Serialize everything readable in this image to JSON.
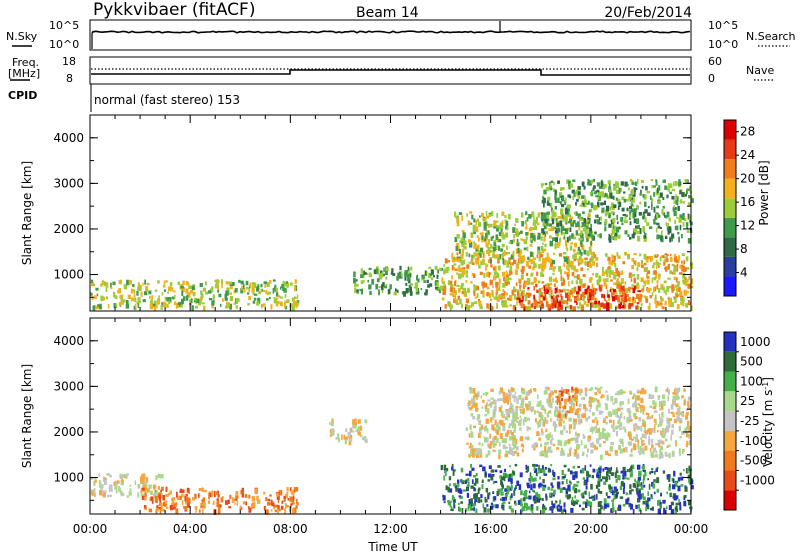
{
  "header": {
    "station": "Pykkvibaer (fitACF)",
    "beam": "Beam 14",
    "date": "20/Feb/2014"
  },
  "nsky_panel": {
    "left_label": "N.Sky",
    "left_ticks": [
      "10^5",
      "10^0"
    ],
    "right_ticks": [
      "10^5",
      "10^0"
    ],
    "right_label": "N.Search"
  },
  "freq_panel": {
    "left_label_line1": "Freq.",
    "left_label_line2": "[MHz]",
    "left_ticks": [
      "18",
      "8"
    ],
    "right_ticks": [
      "60",
      "0"
    ],
    "right_label": "Nave"
  },
  "cpid": {
    "label": "CPID",
    "text": "normal (fast stereo) 153"
  },
  "colors": {
    "power": [
      "#1a1aff",
      "#2a3ea0",
      "#2f6a46",
      "#3f9a4a",
      "#9ccc3a",
      "#f2b11a",
      "#f07d1c",
      "#e83a18",
      "#dd0000"
    ],
    "velocity": [
      "#2432c0",
      "#2e6a3a",
      "#45b04a",
      "#a8d98a",
      "#c4c4c4",
      "#f5a63c",
      "#f07a1c",
      "#e84a18",
      "#dd0000"
    ]
  },
  "chart_data": [
    {
      "type": "heatmap",
      "ylabel": "Slant Range [km]",
      "yticks": [
        "1000",
        "2000",
        "3000",
        "4000"
      ],
      "xticks": [
        "00:00",
        "04:00",
        "08:00",
        "12:00",
        "16:00",
        "20:00",
        "00:00"
      ],
      "ylim": [
        200,
        4500
      ],
      "xlim": [
        0,
        24
      ],
      "colorbar": {
        "label": "Power [dB]",
        "ticks": [
          "4",
          "8",
          "12",
          "16",
          "20",
          "24",
          "28"
        ],
        "range": [
          0,
          30
        ]
      },
      "regions": [
        {
          "x": [
            0,
            8.3
          ],
          "y": [
            300,
            900
          ],
          "value": 14
        },
        {
          "x": [
            10.5,
            14
          ],
          "y": [
            600,
            1200
          ],
          "value": 10
        },
        {
          "x": [
            14,
            24
          ],
          "y": [
            300,
            1500
          ],
          "value": 18
        },
        {
          "x": [
            14.5,
            20
          ],
          "y": [
            1300,
            2400
          ],
          "value": 14
        },
        {
          "x": [
            18,
            24
          ],
          "y": [
            1800,
            3100
          ],
          "value": 10
        },
        {
          "x": [
            17,
            22
          ],
          "y": [
            300,
            800
          ],
          "value": 26
        }
      ]
    },
    {
      "type": "heatmap",
      "ylabel": "Slant Range [km]",
      "xlabel": "Time UT",
      "yticks": [
        "1000",
        "2000",
        "3000",
        "4000"
      ],
      "xticks": [
        "00:00",
        "04:00",
        "08:00",
        "12:00",
        "16:00",
        "20:00",
        "00:00"
      ],
      "ylim": [
        200,
        4500
      ],
      "xlim": [
        0,
        24
      ],
      "colorbar": {
        "label": "Velocity [m s^-1]",
        "ticks": [
          "1000",
          "500",
          "100",
          "25",
          "-25",
          "-100",
          "-500",
          "-1000"
        ]
      },
      "regions": [
        {
          "x": [
            0,
            3
          ],
          "y": [
            600,
            1100
          ],
          "value": 0
        },
        {
          "x": [
            2,
            8.3
          ],
          "y": [
            300,
            800
          ],
          "value": -300
        },
        {
          "x": [
            9.5,
            11
          ],
          "y": [
            1800,
            2300
          ],
          "value": 0
        },
        {
          "x": [
            14,
            24
          ],
          "y": [
            300,
            1300
          ],
          "value": 150
        },
        {
          "x": [
            15,
            24
          ],
          "y": [
            1500,
            3000
          ],
          "value": 0
        },
        {
          "x": [
            18.5,
            19.5
          ],
          "y": [
            2400,
            3000
          ],
          "value": -300
        }
      ]
    }
  ]
}
